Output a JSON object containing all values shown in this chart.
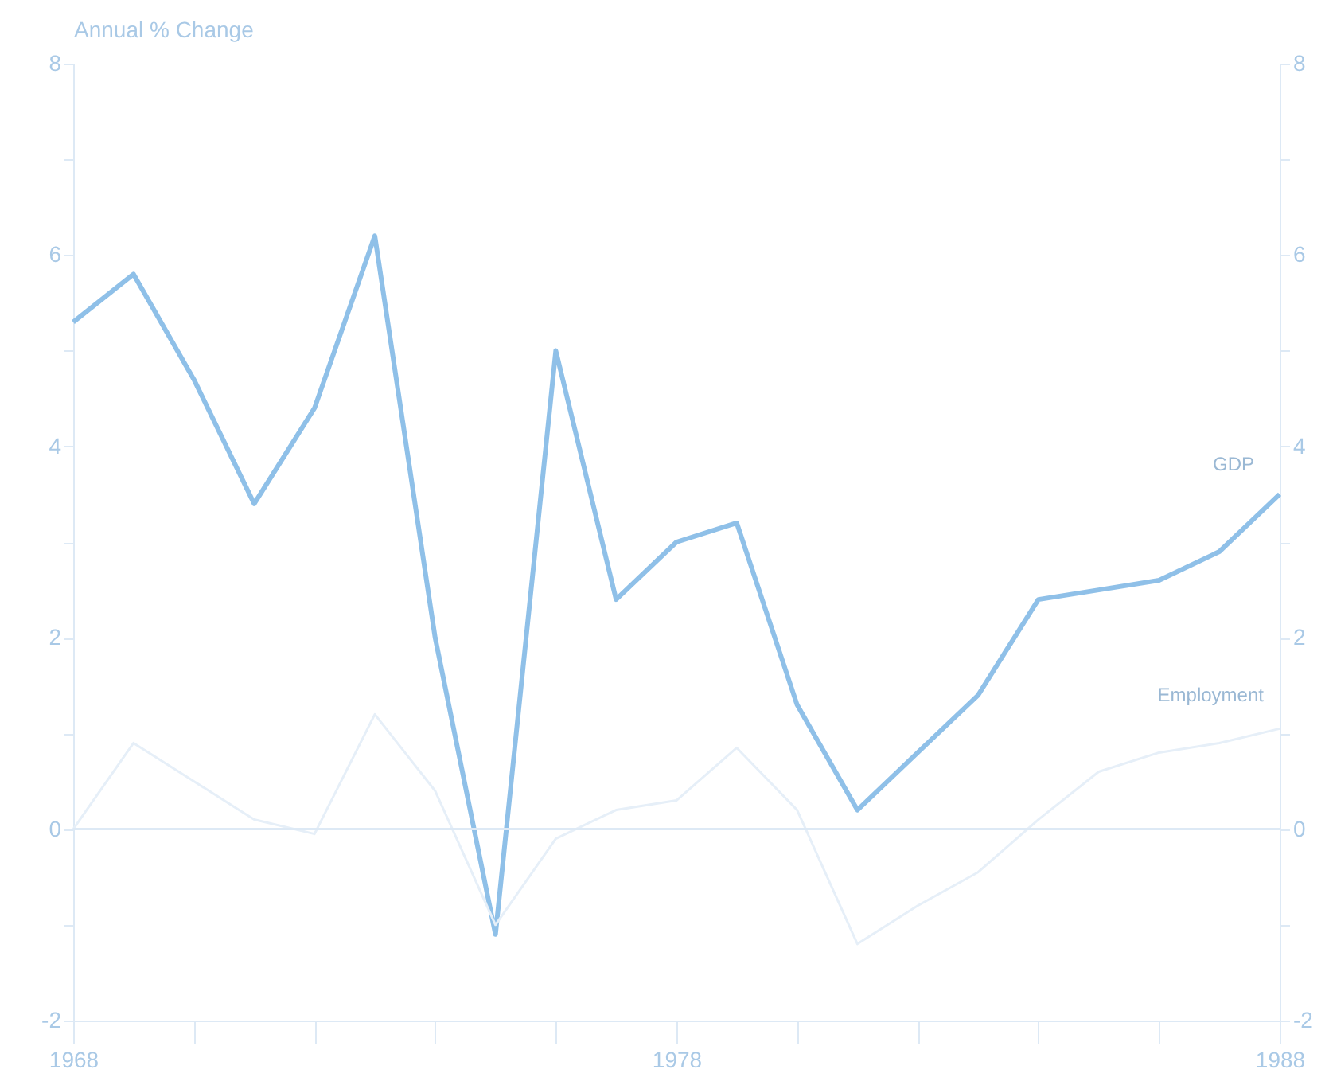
{
  "chart_data": {
    "type": "line",
    "ylabel": "Annual % Change",
    "x": [
      1968,
      1969,
      1970,
      1971,
      1972,
      1973,
      1974,
      1975,
      1976,
      1977,
      1978,
      1979,
      1980,
      1981,
      1982,
      1983,
      1984,
      1985,
      1986,
      1987,
      1988
    ],
    "series": [
      {
        "name": "GDP",
        "color": "#8fc0e8",
        "values": [
          5.3,
          5.8,
          4.7,
          3.4,
          4.4,
          6.2,
          2.0,
          -1.1,
          5.0,
          2.4,
          3.0,
          3.2,
          1.3,
          0.2,
          0.8,
          1.4,
          2.4,
          2.5,
          2.6,
          2.9,
          3.5
        ]
      },
      {
        "name": "Employment",
        "color": "#e6eff8",
        "values": [
          0.0,
          0.9,
          0.5,
          0.1,
          -0.05,
          1.2,
          0.4,
          -1.0,
          -0.1,
          0.2,
          0.3,
          0.85,
          0.2,
          -1.2,
          -0.8,
          -0.45,
          0.1,
          0.6,
          0.8,
          0.9,
          1.05
        ]
      }
    ],
    "xlim": [
      1968,
      1988
    ],
    "xticks": [
      1968,
      {
        "value": 1970,
        "label": null
      },
      {
        "value": 1972,
        "label": null
      },
      {
        "value": 1974,
        "label": null
      },
      {
        "value": 1976,
        "label": null
      },
      1978,
      {
        "value": 1980,
        "label": null
      },
      {
        "value": 1982,
        "label": null
      },
      {
        "value": 1984,
        "label": null
      },
      {
        "value": 1986,
        "label": null
      },
      1988
    ],
    "ylim": [
      -2,
      8
    ],
    "yticks": [
      -2,
      {
        "value": -1,
        "label": null
      },
      0,
      {
        "value": 1,
        "label": null
      },
      2,
      {
        "value": 3,
        "label": null
      },
      4,
      {
        "value": 5,
        "label": null
      },
      6,
      {
        "value": 7,
        "label": null
      },
      8
    ],
    "y2lim": [
      -2,
      8
    ],
    "y2ticks": [
      -2,
      {
        "value": -1,
        "label": null
      },
      0,
      {
        "value": 1,
        "label": null
      },
      2,
      {
        "value": 3,
        "label": null
      },
      4,
      {
        "value": 5,
        "label": null
      },
      6,
      {
        "value": 7,
        "label": null
      },
      8
    ],
    "ref_lines": [
      {
        "axis": "y",
        "value": 0,
        "color": "#dde9f5"
      }
    ],
    "line_style": "solid",
    "marker": "none",
    "grid": false
  }
}
